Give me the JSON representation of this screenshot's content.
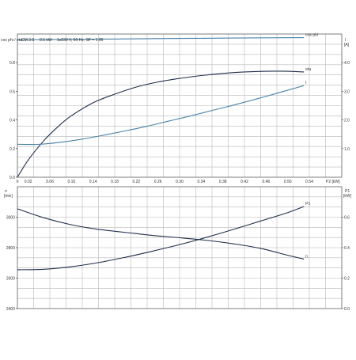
{
  "header": {
    "model": "CM 3-5",
    "rating": "0.5 kW",
    "supply": "1x230 V, 50 Hz, SF = 1.00"
  },
  "colors": {
    "dark_series": "#1f2f4a",
    "light_series": "#4a83a6",
    "grid": "#b8b8b8",
    "axis": "#555555"
  },
  "chart_data": [
    {
      "type": "line",
      "left_axis": {
        "label": "cos phi / eta",
        "ylim": [
          0,
          1.0
        ],
        "ticks": [
          "0.0",
          "0.2",
          "0.4",
          "0.6",
          "0.8"
        ]
      },
      "right_axis": {
        "label": "I",
        "unit": "[A]",
        "ylim": [
          0,
          5.0
        ],
        "ticks": [
          "1.0",
          "2.0",
          "3.0",
          "4.0"
        ]
      },
      "x_axis": {
        "label": "P2 [kW]",
        "xlim": [
          0,
          0.6
        ],
        "ticks": [
          "0",
          "0.02",
          "0.06",
          "0.10",
          "0.14",
          "0.18",
          "0.22",
          "0.26",
          "0.30",
          "0.34",
          "0.38",
          "0.42",
          "0.46",
          "0.50",
          "0.54"
        ]
      },
      "series": [
        {
          "name": "cos phi",
          "axis": "left",
          "color": "#4a83a6",
          "x": [
            0,
            0.1,
            0.2,
            0.3,
            0.4,
            0.53
          ],
          "y": [
            0.96,
            0.963,
            0.966,
            0.969,
            0.972,
            0.975
          ]
        },
        {
          "name": "eta",
          "axis": "left",
          "color": "#1f2f4a",
          "x": [
            0,
            0.02,
            0.05,
            0.08,
            0.1,
            0.14,
            0.18,
            0.22,
            0.26,
            0.3,
            0.34,
            0.38,
            0.42,
            0.46,
            0.5,
            0.53
          ],
          "y": [
            0.0,
            0.12,
            0.26,
            0.37,
            0.43,
            0.52,
            0.58,
            0.63,
            0.665,
            0.69,
            0.71,
            0.725,
            0.735,
            0.74,
            0.74,
            0.735
          ]
        },
        {
          "name": "I",
          "axis": "right",
          "color": "#4a83a6",
          "x": [
            0,
            0.04,
            0.08,
            0.12,
            0.16,
            0.2,
            0.24,
            0.28,
            0.32,
            0.36,
            0.4,
            0.44,
            0.48,
            0.53
          ],
          "y": [
            1.15,
            1.15,
            1.22,
            1.33,
            1.47,
            1.62,
            1.78,
            1.96,
            2.14,
            2.33,
            2.52,
            2.72,
            2.93,
            3.2
          ]
        }
      ]
    },
    {
      "type": "line",
      "left_axis": {
        "label": "n",
        "unit": "[min]",
        "ylim": [
          2400,
          3200
        ],
        "ticks": [
          "2400",
          "2600",
          "2800",
          "3000"
        ]
      },
      "right_axis": {
        "label": "P1",
        "unit": "[kW]",
        "ylim": [
          0,
          0.8
        ],
        "ticks": [
          "0.0",
          "0.2",
          "0.4",
          "0.6"
        ]
      },
      "x_axis": {
        "xlim": [
          0,
          0.6
        ]
      },
      "series": [
        {
          "name": "n",
          "axis": "left",
          "color": "#1f2f4a",
          "x": [
            0,
            0.05,
            0.1,
            0.15,
            0.2,
            0.25,
            0.3,
            0.35,
            0.4,
            0.45,
            0.5,
            0.53
          ],
          "y": [
            3055,
            2995,
            2950,
            2920,
            2900,
            2880,
            2865,
            2848,
            2825,
            2795,
            2750,
            2725
          ]
        },
        {
          "name": "P1",
          "axis": "right",
          "color": "#1f2f4a",
          "x": [
            0,
            0.05,
            0.1,
            0.15,
            0.2,
            0.25,
            0.3,
            0.35,
            0.4,
            0.45,
            0.5,
            0.53
          ],
          "y": [
            0.255,
            0.258,
            0.275,
            0.302,
            0.337,
            0.377,
            0.42,
            0.468,
            0.52,
            0.575,
            0.63,
            0.67
          ]
        }
      ]
    }
  ]
}
